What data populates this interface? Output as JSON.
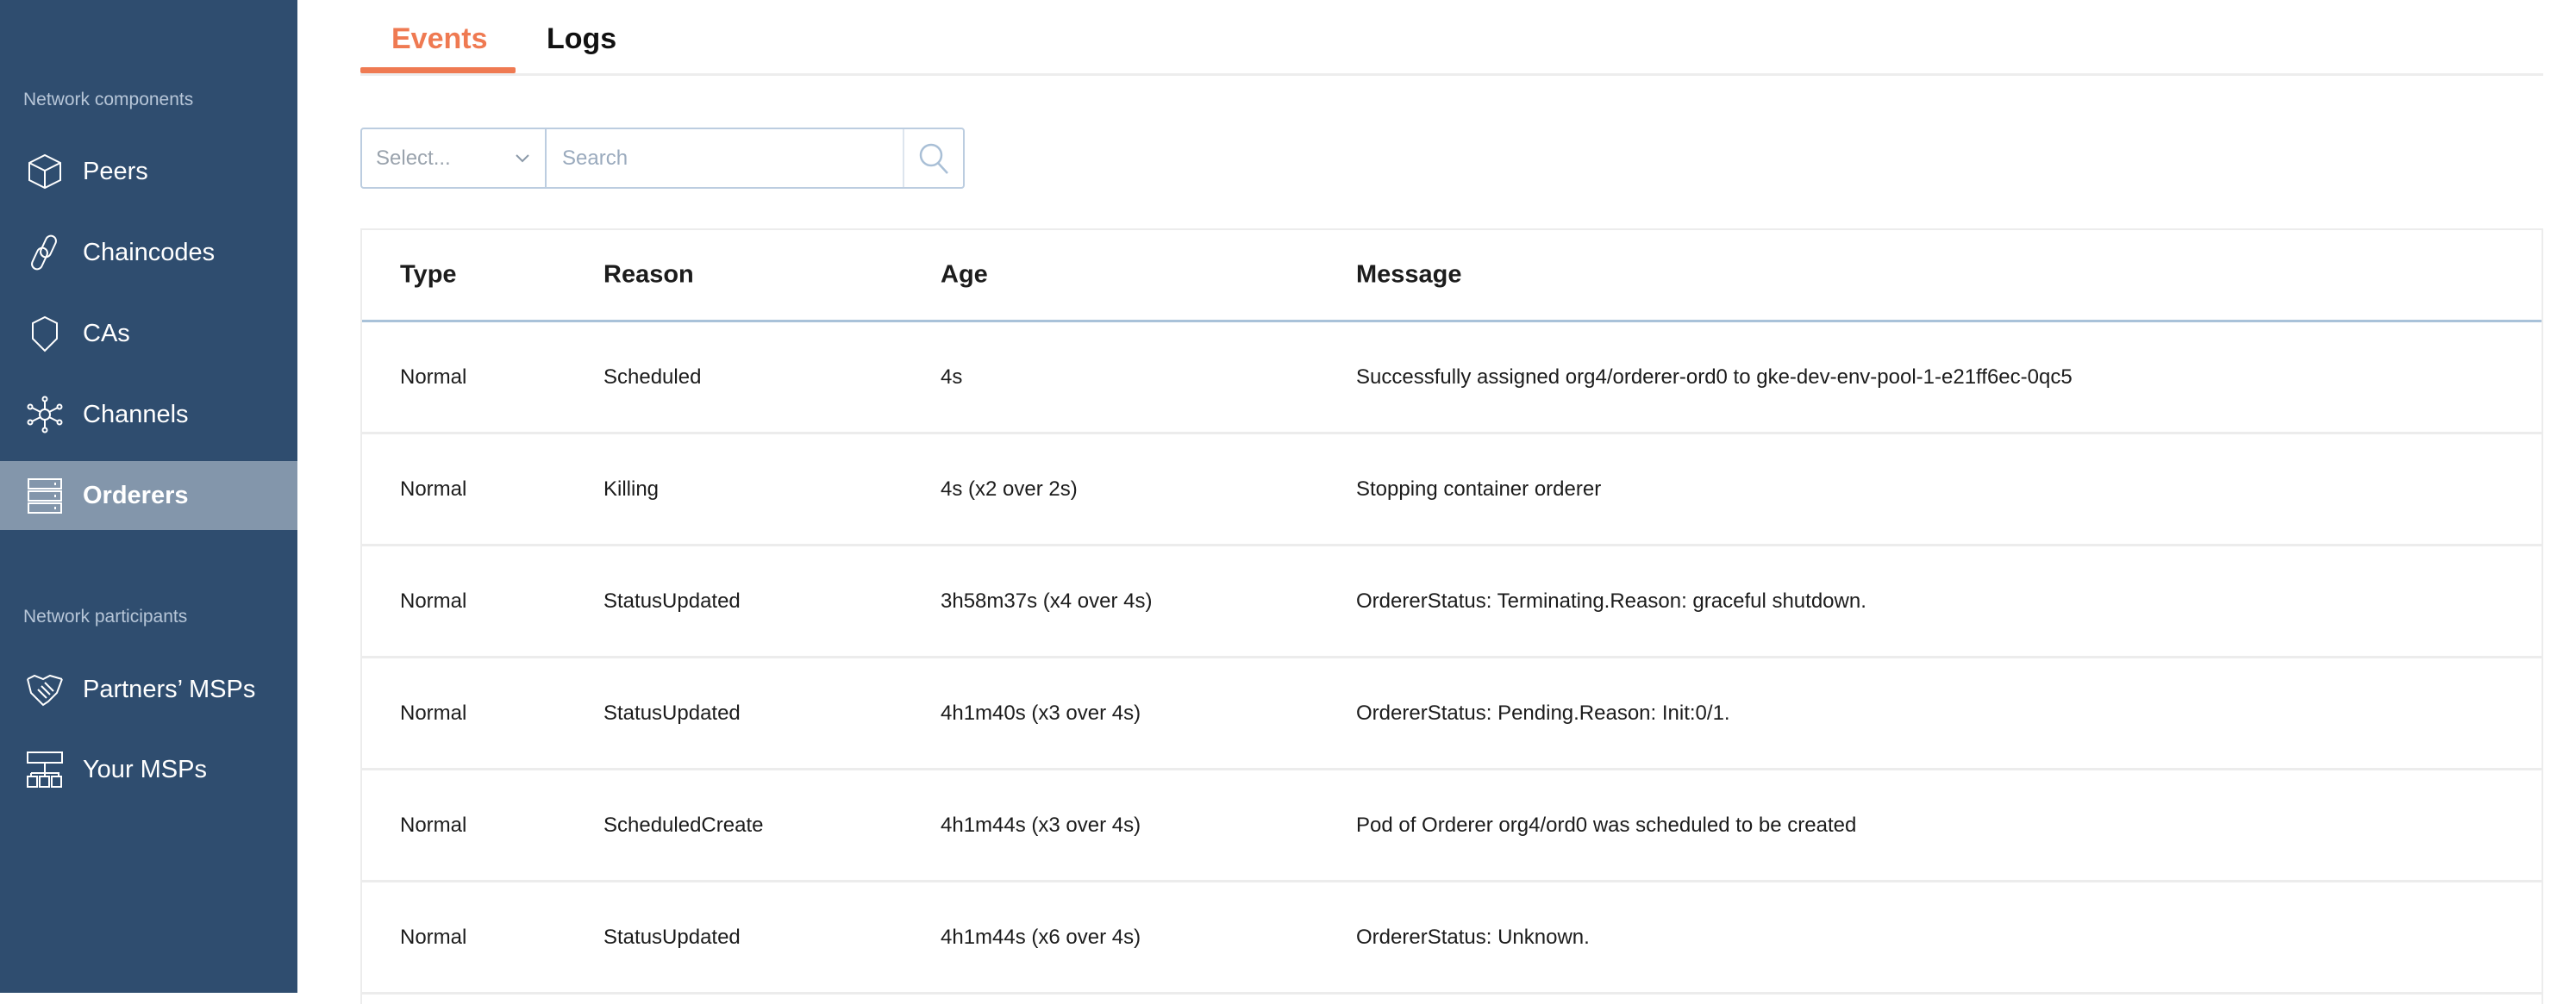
{
  "sidebar": {
    "sections": [
      {
        "title": "Network components",
        "items": [
          {
            "label": "Peers",
            "icon": "cube-icon"
          },
          {
            "label": "Chaincodes",
            "icon": "link-icon"
          },
          {
            "label": "CAs",
            "icon": "shield-icon"
          },
          {
            "label": "Channels",
            "icon": "network-hub-icon"
          },
          {
            "label": "Orderers",
            "icon": "server-stack-icon",
            "active": true
          }
        ]
      },
      {
        "title": "Network participants",
        "items": [
          {
            "label": "Partners’ MSPs",
            "icon": "handshake-icon"
          },
          {
            "label": "Your MSPs",
            "icon": "org-chart-icon"
          }
        ]
      }
    ]
  },
  "tabs": [
    {
      "label": "Events",
      "active": true
    },
    {
      "label": "Logs"
    }
  ],
  "filter": {
    "select_placeholder": "Select...",
    "search_placeholder": "Search",
    "search_value": ""
  },
  "table": {
    "headers": [
      "Type",
      "Reason",
      "Age",
      "Message"
    ],
    "rows": [
      [
        "Normal",
        "Scheduled",
        "4s",
        "Successfully assigned org4/orderer-ord0 to gke-dev-env-pool-1-e21ff6ec-0qc5"
      ],
      [
        "Normal",
        "Killing",
        "4s (x2 over 2s)",
        "Stopping container orderer"
      ],
      [
        "Normal",
        "StatusUpdated",
        "3h58m37s (x4 over 4s)",
        "OrdererStatus: Terminating.Reason: graceful shutdown."
      ],
      [
        "Normal",
        "StatusUpdated",
        "4h1m40s (x3 over 4s)",
        "OrdererStatus: Pending.Reason: Init:0/1."
      ],
      [
        "Normal",
        "ScheduledCreate",
        "4h1m44s (x3 over 4s)",
        "Pod of Orderer org4/ord0 was scheduled to be created"
      ],
      [
        "Normal",
        "StatusUpdated",
        "4h1m44s (x6 over 4s)",
        "OrdererStatus: Unknown."
      ]
    ]
  },
  "colors": {
    "sidebar": "#2f4d6f",
    "active_item": "#8396ab",
    "accent": "#ef7a52"
  }
}
